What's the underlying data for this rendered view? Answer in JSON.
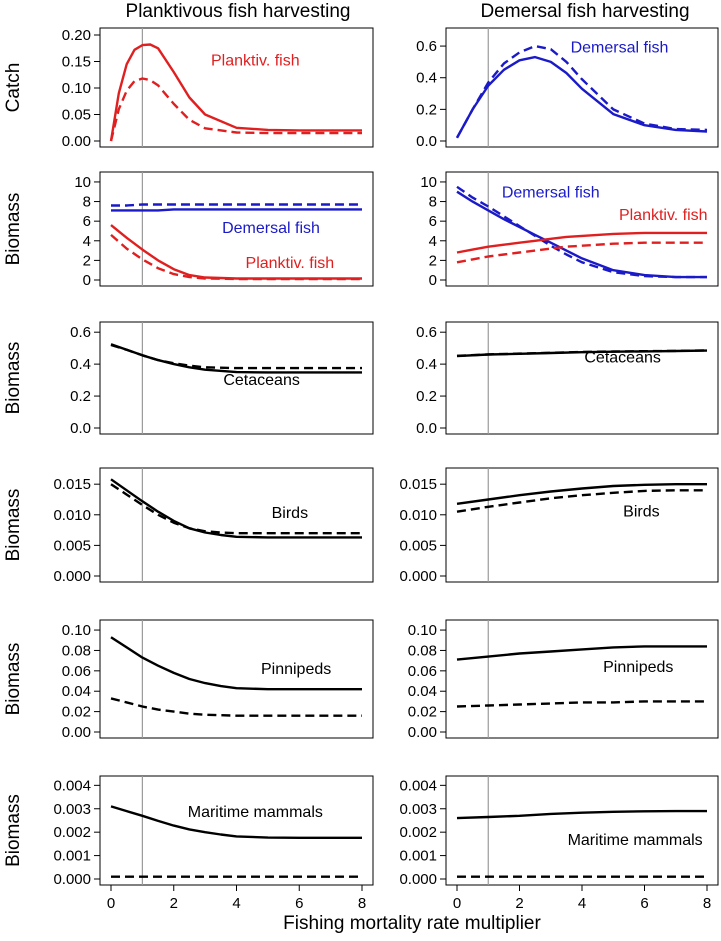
{
  "figure": {
    "column_titles": [
      "Planktivous fish harvesting",
      "Demersal fish harvesting"
    ],
    "xlabel": "Fishing mortality rate multiplier"
  },
  "colors": {
    "planktivorous": "#e02020",
    "demersal": "#1a1ac8",
    "other": "#000000",
    "reference": "#9a9a9a"
  },
  "chart_data": [
    {
      "id": "r0c0",
      "type": "line",
      "row": 0,
      "col": 0,
      "ylabel": "Catch",
      "ylim": [
        0,
        0.2
      ],
      "yticks": [
        "0.00",
        "0.05",
        "0.10",
        "0.15",
        "0.20"
      ],
      "xticks": [],
      "reference_x": 1,
      "x": [
        0,
        0.25,
        0.5,
        0.75,
        1,
        1.25,
        1.5,
        2,
        2.5,
        3,
        4,
        5,
        6,
        7,
        8
      ],
      "series": [
        {
          "name": "Planktiv. fish",
          "style": "solid",
          "color": "#e02020",
          "values": [
            0,
            0.09,
            0.145,
            0.172,
            0.181,
            0.182,
            0.175,
            0.13,
            0.082,
            0.05,
            0.025,
            0.021,
            0.02,
            0.02,
            0.02
          ]
        },
        {
          "name": "",
          "style": "dashed",
          "color": "#e02020",
          "values": [
            0,
            0.06,
            0.095,
            0.113,
            0.118,
            0.115,
            0.105,
            0.07,
            0.04,
            0.024,
            0.016,
            0.015,
            0.015,
            0.015,
            0.015
          ]
        }
      ],
      "labels": [
        {
          "text": "Planktiv. fish",
          "color": "#e02020",
          "x": 4.6,
          "y": 0.142
        }
      ]
    },
    {
      "id": "r0c1",
      "type": "line",
      "row": 0,
      "col": 1,
      "ylabel": "",
      "ylim": [
        0,
        0.67
      ],
      "yticks": [
        "0.0",
        "0.2",
        "0.4",
        "0.6"
      ],
      "xticks": [],
      "reference_x": 1,
      "x": [
        0,
        0.5,
        1,
        1.5,
        2,
        2.5,
        3,
        3.5,
        4,
        5,
        6,
        7,
        8
      ],
      "series": [
        {
          "name": "Demersal fish",
          "style": "solid",
          "color": "#1a1ac8",
          "values": [
            0.02,
            0.2,
            0.35,
            0.45,
            0.51,
            0.53,
            0.5,
            0.43,
            0.33,
            0.17,
            0.1,
            0.07,
            0.06
          ]
        },
        {
          "name": "",
          "style": "dashed",
          "color": "#1a1ac8",
          "values": [
            0.02,
            0.2,
            0.37,
            0.49,
            0.56,
            0.6,
            0.58,
            0.5,
            0.39,
            0.2,
            0.11,
            0.075,
            0.07
          ]
        }
      ],
      "labels": [
        {
          "text": "Demersal fish",
          "color": "#1a1ac8",
          "x": 5.2,
          "y": 0.56
        }
      ]
    },
    {
      "id": "r1c0",
      "type": "line",
      "row": 1,
      "col": 0,
      "ylabel": "Biomass",
      "ylim": [
        0,
        10.3
      ],
      "yticks": [
        "0",
        "2",
        "4",
        "6",
        "8",
        "10"
      ],
      "xticks": [],
      "reference_x": 1,
      "x": [
        0,
        0.5,
        1,
        1.5,
        2,
        2.5,
        3,
        4,
        5,
        6,
        7,
        8
      ],
      "series": [
        {
          "name": "Demersal fish",
          "style": "solid",
          "color": "#1a1ac8",
          "values": [
            7.1,
            7.1,
            7.1,
            7.1,
            7.2,
            7.2,
            7.2,
            7.2,
            7.2,
            7.2,
            7.2,
            7.2
          ]
        },
        {
          "name": "",
          "style": "dashed",
          "color": "#1a1ac8",
          "values": [
            7.6,
            7.6,
            7.7,
            7.7,
            7.7,
            7.7,
            7.7,
            7.7,
            7.7,
            7.7,
            7.7,
            7.7
          ]
        },
        {
          "name": "Planktiv. fish",
          "style": "solid",
          "color": "#e02020",
          "values": [
            5.6,
            4.3,
            3.1,
            2.0,
            1.1,
            0.5,
            0.25,
            0.15,
            0.15,
            0.15,
            0.15,
            0.15
          ]
        },
        {
          "name": "",
          "style": "dashed",
          "color": "#e02020",
          "values": [
            4.6,
            3.2,
            2.1,
            1.2,
            0.6,
            0.3,
            0.15,
            0.1,
            0.1,
            0.1,
            0.1,
            0.1
          ]
        }
      ],
      "labels": [
        {
          "text": "Demersal fish",
          "color": "#1a1ac8",
          "x": 5.1,
          "y": 4.8
        },
        {
          "text": "Planktiv. fish",
          "color": "#e02020",
          "x": 5.7,
          "y": 1.2
        }
      ]
    },
    {
      "id": "r1c1",
      "type": "line",
      "row": 1,
      "col": 1,
      "ylabel": "",
      "ylim": [
        0,
        10.3
      ],
      "yticks": [
        "0",
        "2",
        "4",
        "6",
        "8",
        "10"
      ],
      "xticks": [],
      "reference_x": 1,
      "x": [
        0,
        0.5,
        1,
        1.5,
        2,
        2.5,
        3,
        3.5,
        4,
        5,
        6,
        7,
        8
      ],
      "series": [
        {
          "name": "Demersal fish",
          "style": "solid",
          "color": "#1a1ac8",
          "values": [
            9.0,
            8.0,
            7.1,
            6.2,
            5.4,
            4.6,
            3.8,
            3.0,
            2.2,
            1.0,
            0.5,
            0.3,
            0.3
          ]
        },
        {
          "name": "",
          "style": "dashed",
          "color": "#1a1ac8",
          "values": [
            9.5,
            8.4,
            7.5,
            6.5,
            5.5,
            4.5,
            3.5,
            2.6,
            1.8,
            0.8,
            0.4,
            0.3,
            0.3
          ]
        },
        {
          "name": "Planktiv. fish",
          "style": "solid",
          "color": "#e02020",
          "values": [
            2.8,
            3.1,
            3.4,
            3.6,
            3.8,
            4.0,
            4.2,
            4.4,
            4.5,
            4.7,
            4.8,
            4.8,
            4.8
          ]
        },
        {
          "name": "",
          "style": "dashed",
          "color": "#e02020",
          "values": [
            1.8,
            2.1,
            2.4,
            2.6,
            2.8,
            3.0,
            3.2,
            3.4,
            3.5,
            3.7,
            3.8,
            3.8,
            3.8
          ]
        }
      ],
      "labels": [
        {
          "text": "Demersal fish",
          "color": "#1a1ac8",
          "x": 3.0,
          "y": 8.4
        },
        {
          "text": "Planktiv. fish",
          "color": "#e02020",
          "x": 6.6,
          "y": 6.1
        }
      ]
    },
    {
      "id": "r2c0",
      "type": "line",
      "row": 2,
      "col": 0,
      "ylabel": "Biomass",
      "ylim": [
        0,
        0.62
      ],
      "yticks": [
        "0.0",
        "0.2",
        "0.4",
        "0.6"
      ],
      "xticks": [],
      "reference_x": 1,
      "x": [
        0,
        0.5,
        1,
        1.5,
        2,
        2.5,
        3,
        4,
        5,
        6,
        7,
        8
      ],
      "series": [
        {
          "name": "",
          "style": "solid",
          "color": "#000000",
          "values": [
            0.525,
            0.49,
            0.455,
            0.425,
            0.4,
            0.38,
            0.365,
            0.35,
            0.348,
            0.348,
            0.348,
            0.348
          ]
        },
        {
          "name": "",
          "style": "dashed",
          "color": "#000000",
          "values": [
            0.52,
            0.49,
            0.455,
            0.425,
            0.405,
            0.39,
            0.38,
            0.375,
            0.375,
            0.375,
            0.375,
            0.375
          ]
        }
      ],
      "labels": [
        {
          "text": "Cetaceans",
          "color": "#000000",
          "x": 4.8,
          "y": 0.27
        }
      ]
    },
    {
      "id": "r2c1",
      "type": "line",
      "row": 2,
      "col": 1,
      "ylabel": "",
      "ylim": [
        0,
        0.62
      ],
      "yticks": [
        "0.0",
        "0.2",
        "0.4",
        "0.6"
      ],
      "xticks": [],
      "reference_x": 1,
      "x": [
        0,
        1,
        2,
        3,
        4,
        5,
        6,
        7,
        8
      ],
      "series": [
        {
          "name": "",
          "style": "solid",
          "color": "#000000",
          "values": [
            0.45,
            0.46,
            0.465,
            0.47,
            0.475,
            0.478,
            0.48,
            0.482,
            0.485
          ]
        },
        {
          "name": "",
          "style": "dashed",
          "color": "#000000",
          "values": [
            0.452,
            0.461,
            0.466,
            0.471,
            0.476,
            0.479,
            0.481,
            0.483,
            0.486
          ]
        }
      ],
      "labels": [
        {
          "text": "Cetaceans",
          "color": "#000000",
          "x": 5.3,
          "y": 0.41
        }
      ]
    },
    {
      "id": "r3c0",
      "type": "line",
      "row": 3,
      "col": 0,
      "ylabel": "Biomass",
      "ylim": [
        0,
        0.0165
      ],
      "yticks": [
        "0.000",
        "0.005",
        "0.010",
        "0.015"
      ],
      "xticks": [],
      "reference_x": 1,
      "x": [
        0,
        0.5,
        1,
        1.5,
        2,
        2.5,
        3,
        3.5,
        4,
        5,
        6,
        7,
        8
      ],
      "series": [
        {
          "name": "",
          "style": "solid",
          "color": "#000000",
          "values": [
            0.0158,
            0.014,
            0.0122,
            0.0105,
            0.009,
            0.0078,
            0.0071,
            0.0067,
            0.0064,
            0.0063,
            0.0063,
            0.0063,
            0.0063
          ]
        },
        {
          "name": "",
          "style": "dashed",
          "color": "#000000",
          "values": [
            0.015,
            0.0133,
            0.0116,
            0.01,
            0.0087,
            0.0078,
            0.0073,
            0.0071,
            0.007,
            0.007,
            0.007,
            0.007,
            0.007
          ]
        }
      ],
      "labels": [
        {
          "text": "Birds",
          "color": "#000000",
          "x": 5.7,
          "y": 0.0095
        }
      ]
    },
    {
      "id": "r3c1",
      "type": "line",
      "row": 3,
      "col": 1,
      "ylabel": "",
      "ylim": [
        0,
        0.0165
      ],
      "yticks": [
        "0.000",
        "0.005",
        "0.010",
        "0.015"
      ],
      "xticks": [],
      "reference_x": 1,
      "x": [
        0,
        1,
        2,
        3,
        4,
        5,
        6,
        7,
        8
      ],
      "series": [
        {
          "name": "",
          "style": "solid",
          "color": "#000000",
          "values": [
            0.0118,
            0.0125,
            0.0132,
            0.0138,
            0.0143,
            0.0147,
            0.0149,
            0.015,
            0.015
          ]
        },
        {
          "name": "",
          "style": "dashed",
          "color": "#000000",
          "values": [
            0.0105,
            0.0113,
            0.012,
            0.0127,
            0.0132,
            0.0136,
            0.0139,
            0.014,
            0.014
          ]
        }
      ],
      "labels": [
        {
          "text": "Birds",
          "color": "#000000",
          "x": 5.9,
          "y": 0.0097
        }
      ]
    },
    {
      "id": "r4c0",
      "type": "line",
      "row": 4,
      "col": 0,
      "ylabel": "Biomass",
      "ylim": [
        0,
        0.103
      ],
      "yticks": [
        "0.00",
        "0.02",
        "0.04",
        "0.06",
        "0.08",
        "0.10"
      ],
      "xticks": [],
      "reference_x": 1,
      "x": [
        0,
        0.5,
        1,
        1.5,
        2,
        2.5,
        3,
        3.5,
        4,
        5,
        6,
        7,
        8
      ],
      "series": [
        {
          "name": "",
          "style": "solid",
          "color": "#000000",
          "values": [
            0.093,
            0.083,
            0.073,
            0.065,
            0.058,
            0.052,
            0.048,
            0.045,
            0.043,
            0.042,
            0.042,
            0.042,
            0.042
          ]
        },
        {
          "name": "",
          "style": "dashed",
          "color": "#000000",
          "values": [
            0.033,
            0.029,
            0.025,
            0.022,
            0.02,
            0.018,
            0.017,
            0.0165,
            0.016,
            0.016,
            0.016,
            0.016,
            0.016
          ]
        }
      ],
      "labels": [
        {
          "text": "Pinnipeds",
          "color": "#000000",
          "x": 5.9,
          "y": 0.057
        }
      ]
    },
    {
      "id": "r4c1",
      "type": "line",
      "row": 4,
      "col": 1,
      "ylabel": "",
      "ylim": [
        0,
        0.103
      ],
      "yticks": [
        "0.00",
        "0.02",
        "0.04",
        "0.06",
        "0.08",
        "0.10"
      ],
      "xticks": [],
      "reference_x": 1,
      "x": [
        0,
        1,
        2,
        3,
        4,
        5,
        6,
        7,
        8
      ],
      "series": [
        {
          "name": "",
          "style": "solid",
          "color": "#000000",
          "values": [
            0.071,
            0.074,
            0.077,
            0.079,
            0.081,
            0.083,
            0.084,
            0.084,
            0.084
          ]
        },
        {
          "name": "",
          "style": "dashed",
          "color": "#000000",
          "values": [
            0.025,
            0.026,
            0.027,
            0.028,
            0.029,
            0.029,
            0.03,
            0.03,
            0.03
          ]
        }
      ],
      "labels": [
        {
          "text": "Pinnipeds",
          "color": "#000000",
          "x": 5.8,
          "y": 0.059
        }
      ]
    },
    {
      "id": "r5c0",
      "type": "line",
      "row": 5,
      "col": 0,
      "ylabel": "Biomass",
      "ylim": [
        0,
        0.0041
      ],
      "yticks": [
        "0.000",
        "0.001",
        "0.002",
        "0.003",
        "0.004"
      ],
      "xticks": [
        "0",
        "2",
        "4",
        "6",
        "8"
      ],
      "reference_x": 1,
      "x": [
        0,
        0.5,
        1,
        1.5,
        2,
        2.5,
        3,
        3.5,
        4,
        5,
        6,
        7,
        8
      ],
      "series": [
        {
          "name": "",
          "style": "solid",
          "color": "#000000",
          "values": [
            0.0031,
            0.0029,
            0.0027,
            0.00248,
            0.00228,
            0.00212,
            0.002,
            0.0019,
            0.00182,
            0.00177,
            0.00176,
            0.00176,
            0.00176
          ]
        },
        {
          "name": "",
          "style": "dashed",
          "color": "#000000",
          "values": [
            0.0001,
            0.0001,
            0.0001,
            0.0001,
            0.0001,
            0.0001,
            0.0001,
            0.0001,
            0.0001,
            0.0001,
            0.0001,
            0.0001,
            0.0001
          ]
        }
      ],
      "labels": [
        {
          "text": "Maritime mammals",
          "color": "#000000",
          "x": 4.6,
          "y": 0.00265
        }
      ]
    },
    {
      "id": "r5c1",
      "type": "line",
      "row": 5,
      "col": 1,
      "ylabel": "",
      "ylim": [
        0,
        0.0041
      ],
      "yticks": [
        "0.000",
        "0.001",
        "0.002",
        "0.003",
        "0.004"
      ],
      "xticks": [
        "0",
        "2",
        "4",
        "6",
        "8"
      ],
      "reference_x": 1,
      "x": [
        0,
        1,
        2,
        3,
        4,
        5,
        6,
        7,
        8
      ],
      "series": [
        {
          "name": "",
          "style": "solid",
          "color": "#000000",
          "values": [
            0.0026,
            0.00265,
            0.0027,
            0.00278,
            0.00283,
            0.00287,
            0.00289,
            0.0029,
            0.0029
          ]
        },
        {
          "name": "",
          "style": "dashed",
          "color": "#000000",
          "values": [
            0.0001,
            0.0001,
            0.0001,
            0.0001,
            0.0001,
            0.0001,
            0.0001,
            0.0001,
            0.0001
          ]
        }
      ],
      "labels": [
        {
          "text": "Maritime mammals",
          "color": "#000000",
          "x": 5.7,
          "y": 0.00145
        }
      ]
    }
  ]
}
